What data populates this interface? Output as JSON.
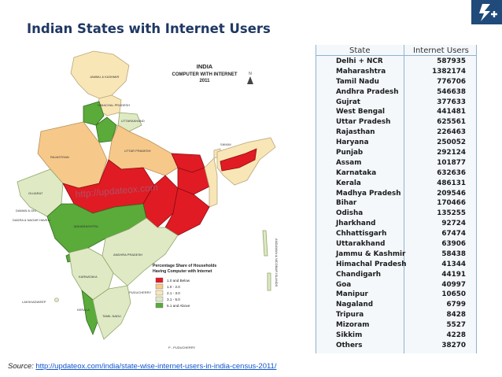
{
  "slide": {
    "title": "Indian States with Internet Users"
  },
  "map": {
    "title_line1": "INDIA",
    "title_line2": "COMPUTER WITH INTERNET",
    "title_line3": "2011",
    "watermark": "http://updateox.com",
    "legend_title_line1": "Percentage Share of Households",
    "legend_title_line2": "Having Computer with Internet",
    "legend": [
      {
        "label": "1.0 and Below",
        "color": "#e01b24"
      },
      {
        "label": "1.0 - 2.0",
        "color": "#f6c98a"
      },
      {
        "label": "2.1 - 3.0",
        "color": "#f9e6b6"
      },
      {
        "label": "3.1 - 5.0",
        "color": "#dfe9c4"
      },
      {
        "label": "5.1 and Above",
        "color": "#5aab3a"
      }
    ],
    "labels": {
      "jk": "JAMMU & KASHMIR",
      "hp": "HIMACHAL PRADESH",
      "uk": "UTTARAKHAND",
      "rj": "RAJASTHAN",
      "up": "UTTAR PRADESH",
      "gj": "GUJARAT",
      "mh": "MAHARASHTRA",
      "ap": "ANDHRA PRADESH",
      "ka": "KARNATAKA",
      "tn": "TAMIL NADU",
      "kl": "KERALA",
      "py": "PUDUCHERRY",
      "dd": "DAMAN & DIU",
      "dnh": "DADRA & NAGAR HAVELI",
      "sk": "SIKKIM",
      "lak": "LAKSHADWEEP",
      "ani": "ANDAMAN & NICOBAR ISLANDS",
      "py_note": "P - PUDUCHERRY"
    }
  },
  "table": {
    "headers": {
      "state": "State",
      "users": "Internet Users"
    },
    "rows": [
      {
        "state": "Delhi + NCR",
        "users": "587935"
      },
      {
        "state": "Maharashtra",
        "users": "1382174"
      },
      {
        "state": "Tamil Nadu",
        "users": "776706"
      },
      {
        "state": "Andhra Pradesh",
        "users": "546638"
      },
      {
        "state": "Gujrat",
        "users": "377633"
      },
      {
        "state": "West Bengal",
        "users": "441481"
      },
      {
        "state": "Uttar Pradesh",
        "users": "625561"
      },
      {
        "state": "Rajasthan",
        "users": "226463"
      },
      {
        "state": "Haryana",
        "users": "250052"
      },
      {
        "state": "Punjab",
        "users": "292124"
      },
      {
        "state": "Assam",
        "users": "101877"
      },
      {
        "state": "Karnataka",
        "users": "632636"
      },
      {
        "state": "Kerala",
        "users": "486131"
      },
      {
        "state": "Madhya Pradesh",
        "users": "209546"
      },
      {
        "state": "Bihar",
        "users": "170466"
      },
      {
        "state": "Odisha",
        "users": "135255"
      },
      {
        "state": "Jharkhand",
        "users": "92724"
      },
      {
        "state": "Chhattisgarh",
        "users": "67474"
      },
      {
        "state": "Uttarakhand",
        "users": "63906"
      },
      {
        "state": "Jammu & Kashmir",
        "users": "58438"
      },
      {
        "state": "Himachal Pradesh",
        "users": "41344"
      },
      {
        "state": "Chandigarh",
        "users": "44191"
      },
      {
        "state": "Goa",
        "users": "40997"
      },
      {
        "state": "Manipur",
        "users": "10650"
      },
      {
        "state": "Nagaland",
        "users": "6799"
      },
      {
        "state": "Tripura",
        "users": "8428"
      },
      {
        "state": "Mizoram",
        "users": "5527"
      },
      {
        "state": "Sikkim",
        "users": "4228"
      },
      {
        "state": "Others",
        "users": "38270"
      }
    ]
  },
  "source": {
    "label": "Source:",
    "url": "http://updateox.com/india/state-wise-internet-users-in-india-census-2011/"
  }
}
